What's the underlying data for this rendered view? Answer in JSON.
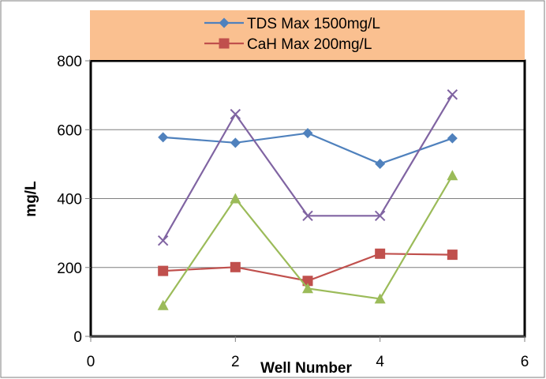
{
  "chart_data": {
    "type": "line",
    "title": "",
    "xlabel": "Well Number",
    "ylabel": "mg/L",
    "xlim": [
      0,
      6
    ],
    "ylim": [
      0,
      800
    ],
    "x_ticks": [
      0,
      2,
      4,
      6
    ],
    "y_ticks": [
      0,
      200,
      400,
      600,
      800
    ],
    "grid": {
      "horizontal": true,
      "vertical": false
    },
    "legend_position": "top",
    "legend_background": "#fac090",
    "x": [
      1,
      2,
      3,
      4,
      5
    ],
    "series": [
      {
        "name": "TDS Max 1500mg/L",
        "marker": "diamond",
        "color": "#4f81bd",
        "show_in_legend": true,
        "values": [
          578,
          562,
          590,
          501,
          575
        ]
      },
      {
        "name": "CaH Max 200mg/L",
        "marker": "square",
        "color": "#c0504d",
        "show_in_legend": true,
        "values": [
          190,
          201,
          161,
          240,
          237
        ]
      },
      {
        "marker": "triangle",
        "color": "#9bbb59",
        "show_in_legend": false,
        "values": [
          90,
          400,
          139,
          109,
          467
        ]
      },
      {
        "marker": "x",
        "color": "#8064a2",
        "show_in_legend": false,
        "values": [
          278,
          645,
          350,
          350,
          702
        ]
      }
    ]
  }
}
